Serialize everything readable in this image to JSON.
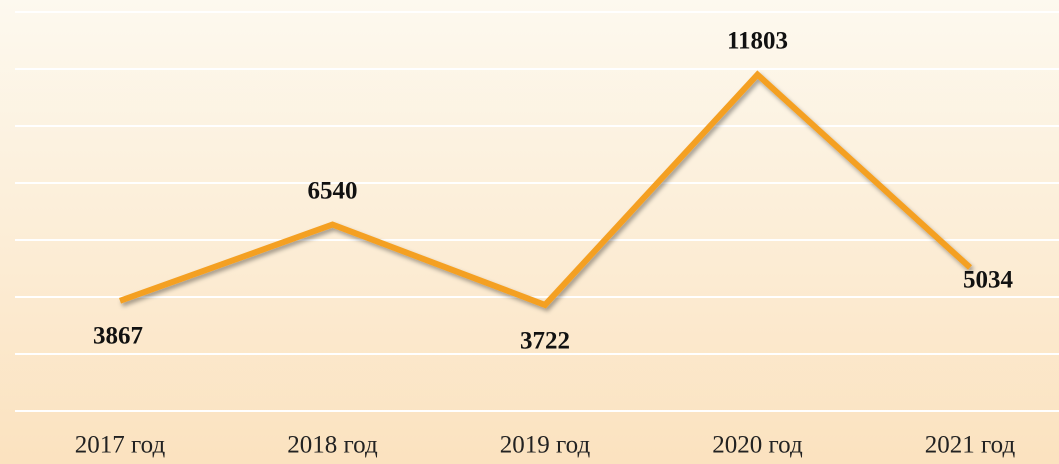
{
  "chart_data": {
    "type": "line",
    "categories": [
      "2017 год",
      "2018 год",
      "2019 год",
      "2020 год",
      "2021 год"
    ],
    "series": [
      {
        "color": "#f4a023",
        "values": [
          3867,
          6540,
          3722,
          11803,
          5034
        ]
      }
    ],
    "ylim": [
      0,
      14000
    ],
    "yticks": [
      0,
      2000,
      4000,
      6000,
      8000,
      10000,
      12000,
      14000
    ],
    "grid": true
  }
}
